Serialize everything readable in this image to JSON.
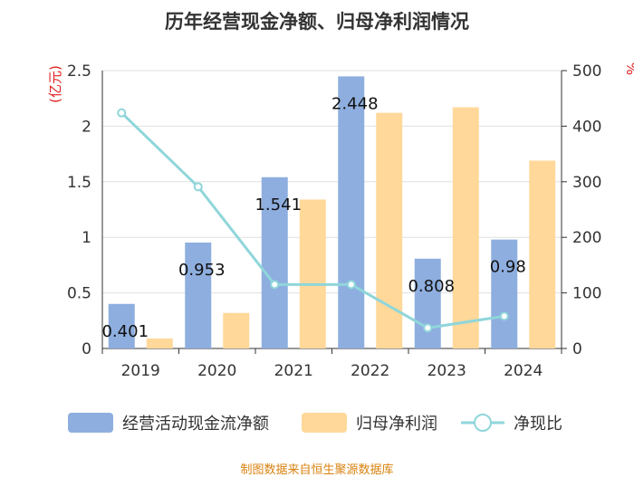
{
  "chart_data": {
    "type": "bar",
    "title": "历年经营现金净额、归母净利润情况",
    "categories": [
      "2019",
      "2020",
      "2021",
      "2022",
      "2023",
      "2024"
    ],
    "y_left": {
      "label": "(亿元)",
      "ticks": [
        "0",
        "0.5",
        "1",
        "1.5",
        "2",
        "2.5"
      ],
      "range": [
        0,
        2.5
      ]
    },
    "y_right": {
      "label": "%",
      "ticks": [
        "0",
        "100",
        "200",
        "300",
        "400",
        "500"
      ],
      "range": [
        0,
        500
      ]
    },
    "grid": true,
    "legend_position": "bottom",
    "series": [
      {
        "name": "经营活动现金流净额",
        "kind": "bar",
        "axis": "left",
        "color": "#8eaedf",
        "values": [
          0.401,
          0.953,
          1.541,
          2.448,
          0.808,
          0.98
        ],
        "data_labels": [
          "0.401",
          "0.953",
          "1.541",
          "2.448",
          "0.808",
          "0.98"
        ]
      },
      {
        "name": "归母净利润",
        "kind": "bar",
        "axis": "left",
        "color": "#ffd89a",
        "values": [
          0.09,
          0.32,
          1.34,
          2.12,
          2.17,
          1.69
        ]
      },
      {
        "name": "净现比",
        "kind": "line",
        "axis": "right",
        "color": "#8fd6da",
        "values": [
          424,
          291,
          115,
          115,
          37,
          58
        ]
      }
    ],
    "source": "制图数据来自恒生聚源数据库"
  }
}
